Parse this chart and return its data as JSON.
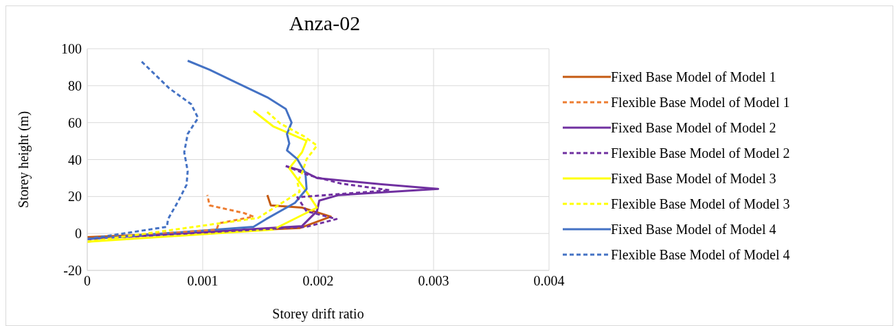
{
  "chart_data": {
    "type": "line",
    "title": "Anza-02",
    "xlabel": "Storey drift ratio",
    "ylabel": "Storey height (m)",
    "xlim": [
      0,
      0.004
    ],
    "xticks": [
      0,
      0.001,
      0.002,
      0.003,
      0.004
    ],
    "ylim": [
      -20,
      100
    ],
    "yticks": [
      -20,
      0,
      20,
      40,
      60,
      80,
      100
    ],
    "grid": true,
    "legend": "right",
    "marker": "none",
    "series": [
      {
        "name": "Fixed Base Model of Model 1",
        "color": "#c55a11",
        "line_style": "solid",
        "x": [
          0,
          0.00184,
          0.00211,
          0.00186,
          0.00159,
          0.00156
        ],
        "values": [
          -2,
          2.9,
          9.1,
          14,
          15.2,
          20.8
        ]
      },
      {
        "name": "Flexible Base Model of Model 1",
        "color": "#ed7d31",
        "line_style": "dashed",
        "x": [
          0,
          0.00112,
          0.00114,
          0.00144,
          0.00136,
          0.00106,
          0.00104
        ],
        "values": [
          -3,
          2.1,
          5.5,
          9.1,
          11,
          15.2,
          20.8
        ]
      },
      {
        "name": "Fixed Base Model of Model 2",
        "color": "#7030a0",
        "line_style": "solid",
        "x": [
          0,
          0.00186,
          0.00199,
          0.00201,
          0.00218,
          0.00304,
          0.00255,
          0.00199,
          0.00188,
          0.00172
        ],
        "values": [
          -3,
          4,
          12.1,
          17.8,
          20.8,
          24.1,
          26.6,
          30,
          33.5,
          36.5
        ]
      },
      {
        "name": "Flexible Base Model of Model 2",
        "color": "#7030a0",
        "line_style": "dashed",
        "x": [
          0,
          0.0019,
          0.00216,
          0.0019,
          0.00182,
          0.00262,
          0.0022,
          0.00192,
          0.00172
        ],
        "values": [
          -3,
          3.6,
          7.8,
          12,
          19.6,
          23.4,
          27,
          31.5,
          36.5
        ]
      },
      {
        "name": "Fixed Base Model of Model 3",
        "color": "#ffff00",
        "line_style": "solid",
        "x": [
          0,
          0.00161,
          0.00199,
          0.0019,
          0.00175,
          0.00186,
          0.0019,
          0.00161,
          0.00144
        ],
        "values": [
          -4.5,
          2.1,
          14,
          22.6,
          35.3,
          43.9,
          50.2,
          58,
          66.3
        ]
      },
      {
        "name": "Flexible Base Model of Model 3",
        "color": "#ffff00",
        "line_style": "dashed",
        "x": [
          0,
          0.00148,
          0.00184,
          0.00182,
          0.00186,
          0.0019,
          0.00199,
          0.00188,
          0.00167,
          0.00155
        ],
        "values": [
          -4.5,
          8.4,
          22.6,
          27.8,
          32.7,
          40.2,
          47.6,
          52.5,
          59.6,
          66.3
        ]
      },
      {
        "name": "Fixed Base Model of Model 4",
        "color": "#4472c4",
        "line_style": "solid",
        "x": [
          0,
          0.00144,
          0.00155,
          0.0018,
          0.0019,
          0.00189,
          0.00182,
          0.00173,
          0.00175,
          0.00173,
          0.00177,
          0.00172,
          0.00156,
          0.00127,
          0.00106,
          0.00087
        ],
        "values": [
          -3,
          3.6,
          7.8,
          16.6,
          24.1,
          32.7,
          40.2,
          45,
          48.7,
          53.9,
          60,
          67.4,
          73.7,
          82.3,
          88.6,
          93.5
        ]
      },
      {
        "name": "Flexible Base Model of Model 4",
        "color": "#4472c4",
        "line_style": "dashed",
        "x": [
          0,
          0.00069,
          0.0007,
          0.00079,
          0.00086,
          0.00087,
          0.00084,
          0.00087,
          0.00096,
          0.0009,
          0.00071,
          0.00047
        ],
        "values": [
          -3,
          3.6,
          7.8,
          17.7,
          26.3,
          33.8,
          43.9,
          53.9,
          62.5,
          70,
          78.6,
          93.1
        ]
      }
    ]
  }
}
